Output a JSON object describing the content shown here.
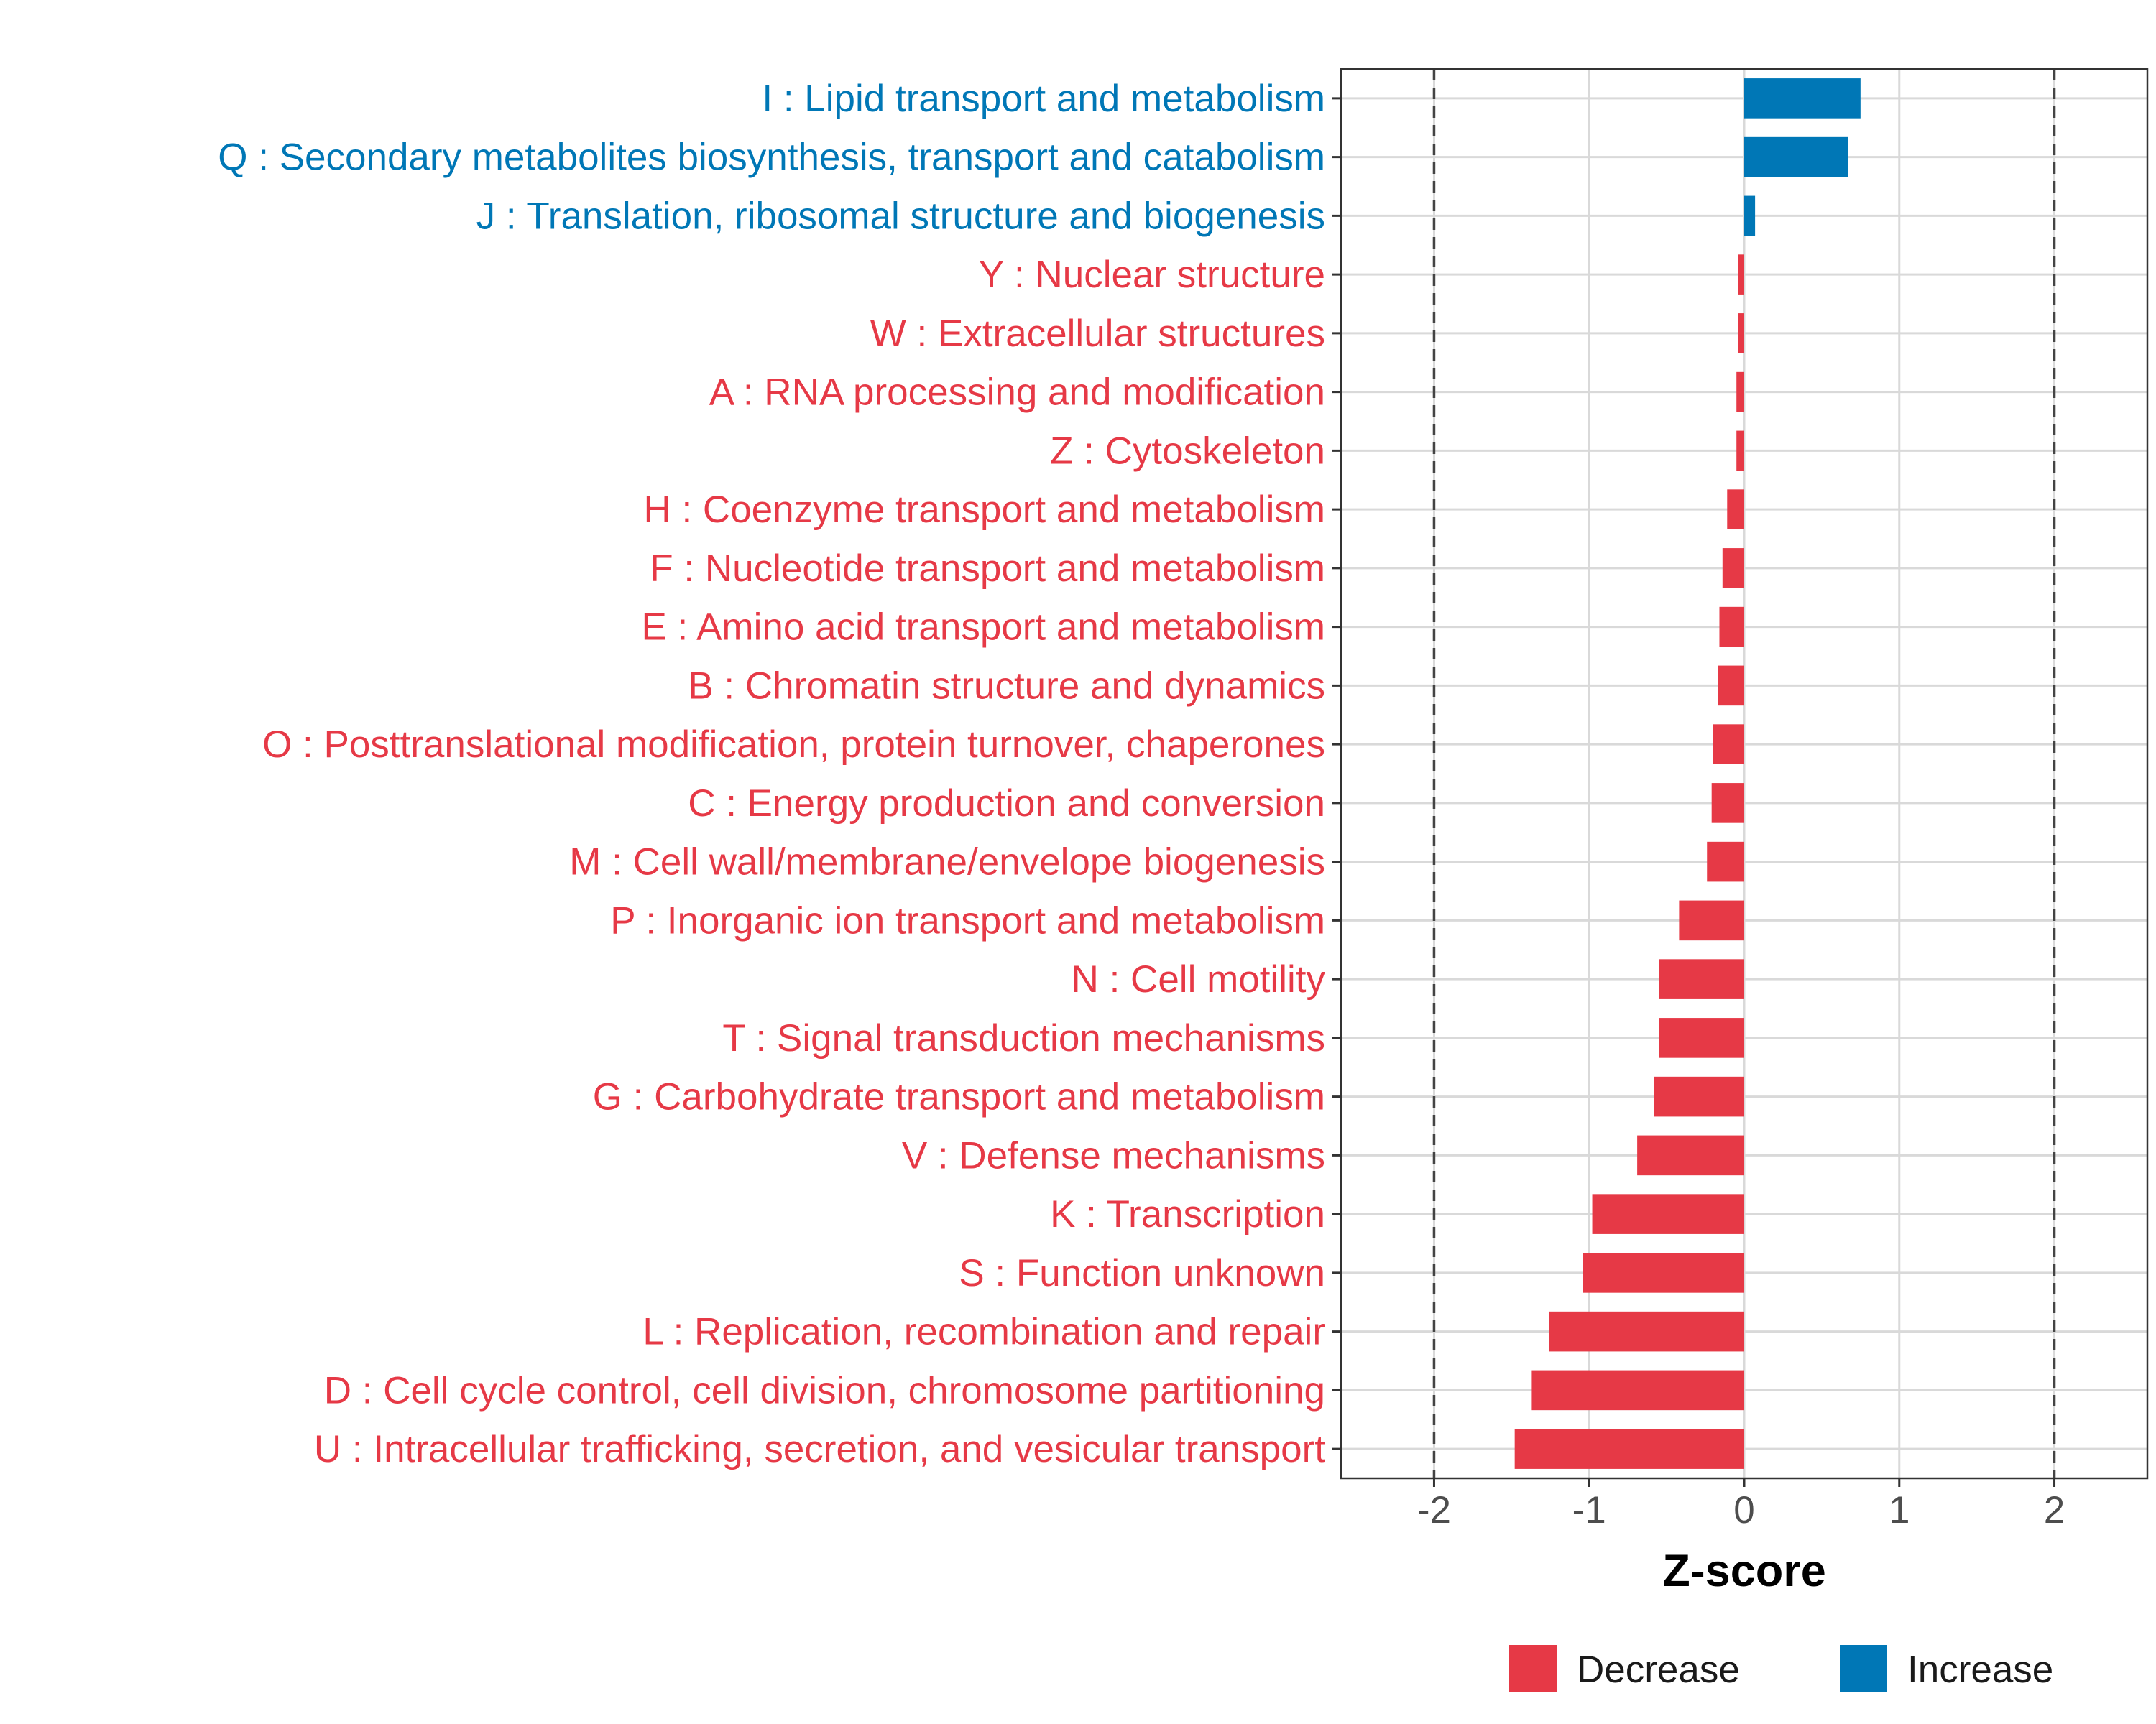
{
  "chart_data": {
    "type": "bar",
    "orientation": "horizontal",
    "title": "",
    "xlabel": "Z-score",
    "ylabel": "",
    "xlim": [
      -2.6,
      2.6
    ],
    "xticks": [
      -2,
      -1,
      0,
      1,
      2
    ],
    "xtick_labels": [
      "-2",
      "-1",
      "0",
      "1",
      "2"
    ],
    "reference_lines": [
      -2,
      2
    ],
    "grid": true,
    "legend": {
      "position": "bottom",
      "entries": [
        {
          "name": "Decrease",
          "color": "#e63946"
        },
        {
          "name": "Increase",
          "color": "#0077b6"
        }
      ]
    },
    "colors": {
      "Decrease": "#e63946",
      "Increase": "#0077b6"
    },
    "bars": [
      {
        "label": "I : Lipid transport and metabolism",
        "value": 0.75,
        "group": "Increase"
      },
      {
        "label": "Q : Secondary metabolites biosynthesis, transport and catabolism",
        "value": 0.67,
        "group": "Increase"
      },
      {
        "label": "J : Translation, ribosomal structure and biogenesis",
        "value": 0.07,
        "group": "Increase"
      },
      {
        "label": "Y : Nuclear structure",
        "value": -0.04,
        "group": "Decrease"
      },
      {
        "label": "W : Extracellular structures",
        "value": -0.04,
        "group": "Decrease"
      },
      {
        "label": "A : RNA processing and modification",
        "value": -0.05,
        "group": "Decrease"
      },
      {
        "label": "Z : Cytoskeleton",
        "value": -0.05,
        "group": "Decrease"
      },
      {
        "label": "H : Coenzyme transport and metabolism",
        "value": -0.11,
        "group": "Decrease"
      },
      {
        "label": "F : Nucleotide transport and metabolism",
        "value": -0.14,
        "group": "Decrease"
      },
      {
        "label": "E : Amino acid transport and metabolism",
        "value": -0.16,
        "group": "Decrease"
      },
      {
        "label": "B : Chromatin structure and dynamics",
        "value": -0.17,
        "group": "Decrease"
      },
      {
        "label": "O : Posttranslational modification, protein turnover, chaperones",
        "value": -0.2,
        "group": "Decrease"
      },
      {
        "label": "C : Energy production and conversion",
        "value": -0.21,
        "group": "Decrease"
      },
      {
        "label": "M : Cell wall/membrane/envelope biogenesis",
        "value": -0.24,
        "group": "Decrease"
      },
      {
        "label": "P : Inorganic ion transport and metabolism",
        "value": -0.42,
        "group": "Decrease"
      },
      {
        "label": "N : Cell motility",
        "value": -0.55,
        "group": "Decrease"
      },
      {
        "label": "T : Signal transduction mechanisms",
        "value": -0.55,
        "group": "Decrease"
      },
      {
        "label": "G : Carbohydrate transport and metabolism",
        "value": -0.58,
        "group": "Decrease"
      },
      {
        "label": "V : Defense mechanisms",
        "value": -0.69,
        "group": "Decrease"
      },
      {
        "label": "K : Transcription",
        "value": -0.98,
        "group": "Decrease"
      },
      {
        "label": "S : Function unknown",
        "value": -1.04,
        "group": "Decrease"
      },
      {
        "label": "L : Replication, recombination and repair",
        "value": -1.26,
        "group": "Decrease"
      },
      {
        "label": "D : Cell cycle control, cell division, chromosome partitioning",
        "value": -1.37,
        "group": "Decrease"
      },
      {
        "label": "U : Intracellular trafficking, secretion, and vesicular transport",
        "value": -1.48,
        "group": "Decrease"
      }
    ]
  }
}
